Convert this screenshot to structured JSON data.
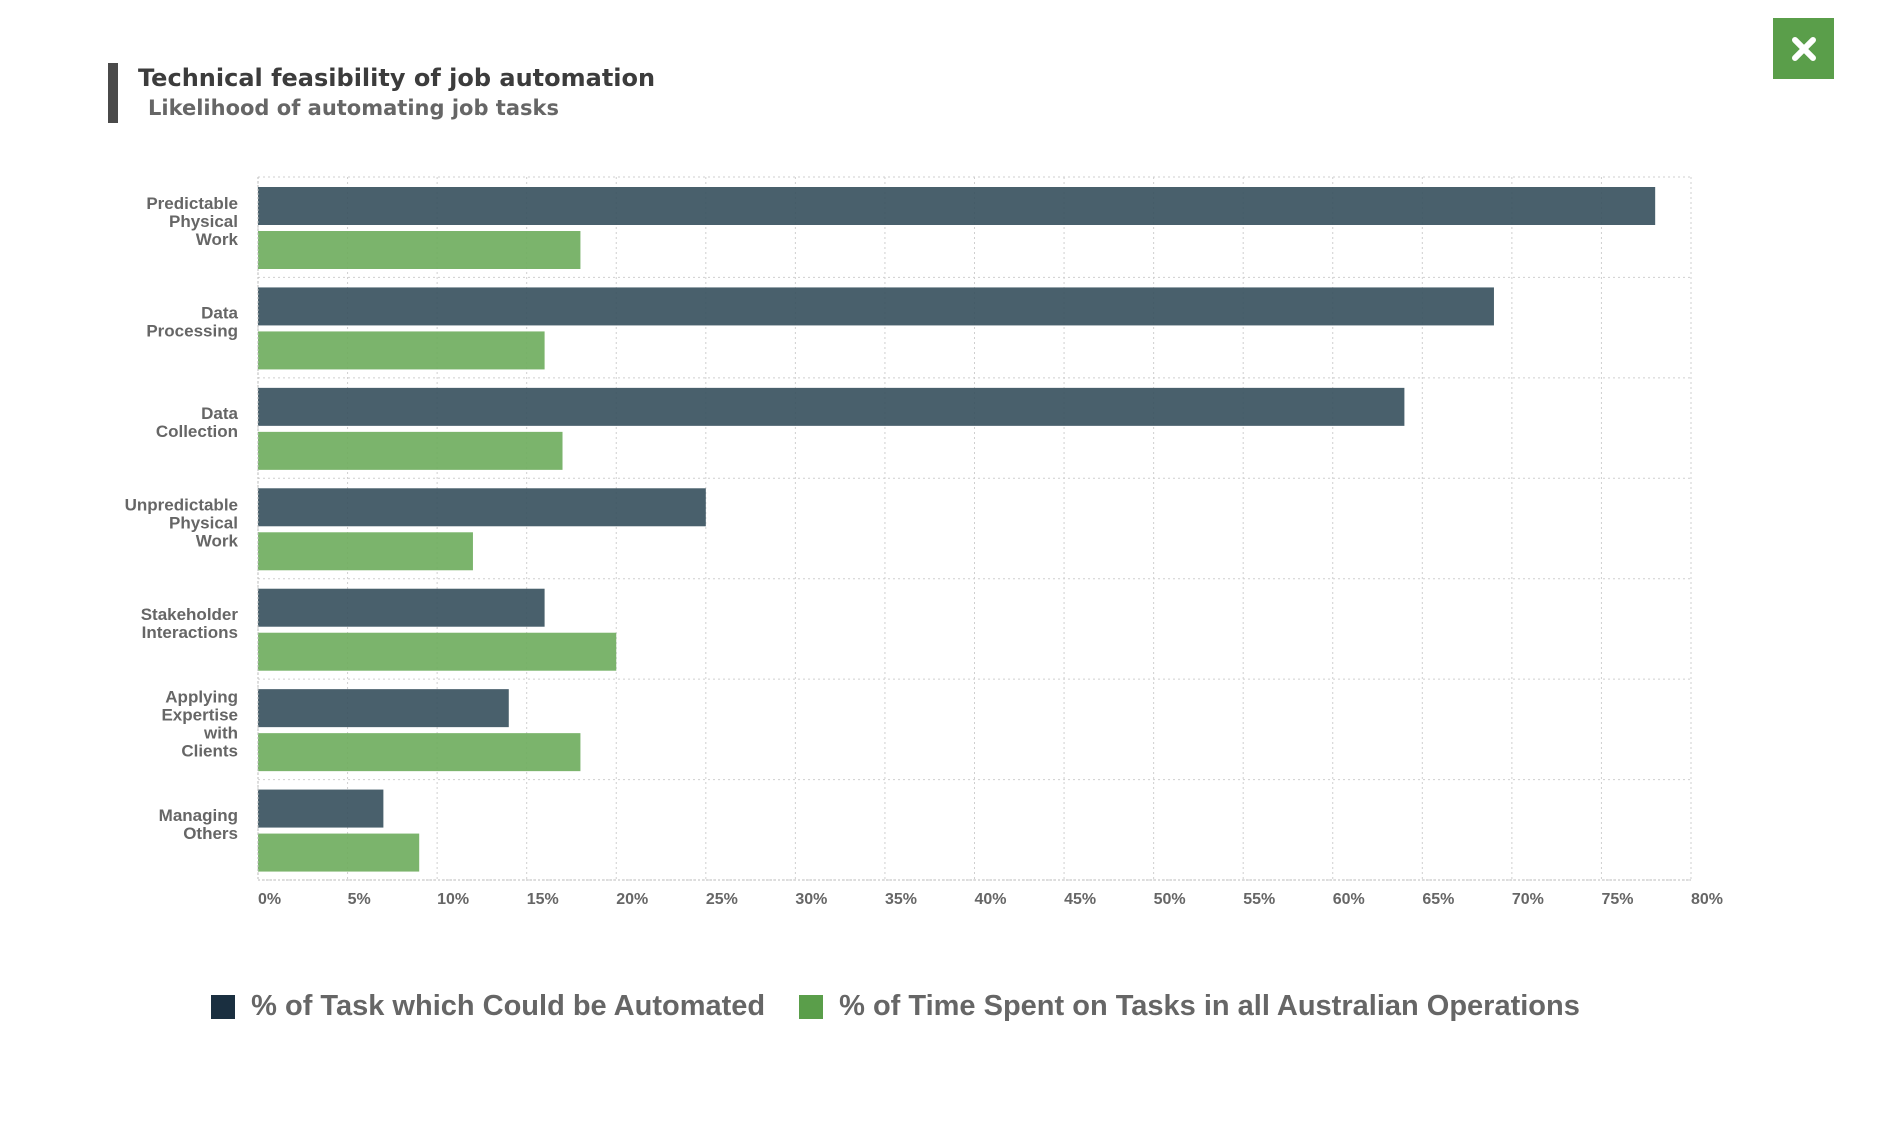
{
  "header": {
    "title": "Technical feasibility of job automation",
    "subtitle": "Likelihood of automating job tasks"
  },
  "close_button": {
    "icon": "close-icon"
  },
  "colors": {
    "series_automated": "#395360",
    "series_time": "#70ae5f",
    "legend_automated": "#1a2f40",
    "legend_time": "#5a9e4a",
    "close_bg": "#5a9e4a"
  },
  "chart_data": {
    "type": "bar",
    "orientation": "horizontal",
    "categories": [
      [
        "Predictable",
        "Physical",
        "Work"
      ],
      [
        "Data",
        "Processing"
      ],
      [
        "Data",
        "Collection"
      ],
      [
        "Unpredictable",
        "Physical",
        "Work"
      ],
      [
        "Stakeholder",
        "Interactions"
      ],
      [
        "Applying",
        "Expertise",
        "with",
        "Clients"
      ],
      [
        "Managing",
        "Others"
      ]
    ],
    "series": [
      {
        "name": "% of Task which Could be Automated",
        "values": [
          78,
          69,
          64,
          25,
          16,
          14,
          7
        ]
      },
      {
        "name": "% of Time Spent on Tasks in all Australian Operations",
        "values": [
          18,
          16,
          17,
          12,
          20,
          18,
          9
        ]
      }
    ],
    "xlim": [
      0,
      80
    ],
    "xticks": [
      "0%",
      "5%",
      "10%",
      "15%",
      "20%",
      "25%",
      "30%",
      "35%",
      "40%",
      "45%",
      "50%",
      "55%",
      "60%",
      "65%",
      "70%",
      "75%",
      "80%"
    ],
    "grid": true,
    "legend_position": "bottom"
  }
}
